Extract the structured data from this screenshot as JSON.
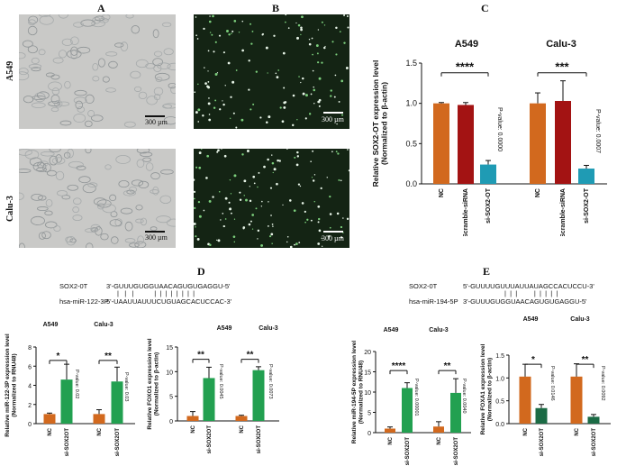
{
  "panels": {
    "A": "A",
    "B": "B",
    "C": "C",
    "D": "D",
    "E": "E"
  },
  "row_labels": {
    "top": "A549",
    "bottom": "Calu-3"
  },
  "scalebar_label": "300 µm",
  "colors": {
    "orange": "#d2691e",
    "dark_red": "#a31313",
    "teal": "#1f9bb4",
    "green": "#22a050",
    "dark_green": "#1b6b45"
  },
  "panel_C": {
    "titles": [
      "A549",
      "Calu-3"
    ],
    "ylabel_line1": "Relative SOX2-OT expression level",
    "ylabel_line2": "(Normalized to β-actin)",
    "yticks": [
      "0.0",
      "0.5",
      "1.0",
      "1.5"
    ],
    "pvalues": [
      "P-value: 0.0000",
      "P-value: 0.0007"
    ],
    "stars": [
      "****",
      "***"
    ]
  },
  "panel_D": {
    "seq_sox2_label": "SOX2-0T",
    "seq_sox2": "3'-GUUUGUGGUAACAGUGUGAGGU-5'",
    "seq_mir_label": "hsa-miR-122-3P",
    "seq_mir": "5'-UAAUUAUUUCUGUAGCACUCCAC-3'",
    "chart1": {
      "titles": [
        "A549",
        "Calu-3"
      ],
      "ylabel_line1": "Relative miR-122-3P expression level",
      "ylabel_line2": "(Normalized to RNU48)",
      "yticks": [
        "0",
        "2",
        "4",
        "6",
        "8"
      ],
      "pvalues": [
        "P-value: 0.02",
        "P-value: 0.03"
      ],
      "stars": [
        "*",
        "**"
      ]
    },
    "chart2": {
      "titles": [
        "A549",
        "Calu-3"
      ],
      "ylabel_line1": "Relative FOXO1 expression level",
      "ylabel_line2": "(Normalized to β-actin)",
      "yticks": [
        "0",
        "5",
        "10",
        "15"
      ],
      "pvalues": [
        "P-value: 0.0045",
        "P-value: 0.0073"
      ],
      "stars": [
        "**",
        "**"
      ]
    }
  },
  "panel_E": {
    "seq_sox2_label": "SOX2-0T",
    "seq_sox2": "5'-GUUUUGUUUAUUAUAGCCACUCCU-3'",
    "seq_mir_label": "hsa-miR-194-5P",
    "seq_mir": "3'-GUUUGUGGUAACAGUGUGAGGU-5'",
    "chart1": {
      "titles": [
        "A549",
        "Calu-3"
      ],
      "ylabel_line1": "Relative miR-194-5P expression level",
      "ylabel_line2": "(Normalized to RNU48)",
      "yticks": [
        "0",
        "5",
        "10",
        "15",
        "20"
      ],
      "pvalues": [
        "P-value: 0.00001",
        "P-value: 0.0040"
      ],
      "stars": [
        "****",
        "**"
      ]
    },
    "chart2": {
      "titles": [
        "A549",
        "Calu-3"
      ],
      "ylabel_line1": "Relative FOXA1 expression level",
      "ylabel_line2": "(Normalized to β-actin)",
      "yticks": [
        "0.0",
        "0.5",
        "1.0",
        "1.5"
      ],
      "pvalues": [
        "P-value: 0.0146",
        "P-value: 0.0092"
      ],
      "stars": [
        "*",
        "**"
      ]
    }
  },
  "chart_data": [
    {
      "type": "bar",
      "id": "C",
      "ylim": [
        0,
        1.5
      ],
      "categories": [
        "NC",
        "Scramble-siRNA",
        "si-SOX2-OT",
        "NC",
        "Scramble-siRNA",
        "si-SOX2-OT"
      ],
      "groups": [
        "A549",
        "A549",
        "A549",
        "Calu-3",
        "Calu-3",
        "Calu-3"
      ],
      "values": [
        1.0,
        0.98,
        0.24,
        1.0,
        1.03,
        0.19
      ],
      "errors": [
        0.01,
        0.03,
        0.05,
        0.13,
        0.25,
        0.04
      ],
      "bar_colors": [
        "orange",
        "dark_red",
        "teal",
        "orange",
        "dark_red",
        "teal"
      ]
    },
    {
      "type": "bar",
      "id": "D1",
      "ylim": [
        0,
        8
      ],
      "categories": [
        "NC",
        "si-SOX2OT",
        "NC",
        "si-SOX2OT"
      ],
      "groups": [
        "A549",
        "A549",
        "Calu-3",
        "Calu-3"
      ],
      "values": [
        1.0,
        4.6,
        1.0,
        4.4
      ],
      "errors": [
        0.1,
        1.6,
        0.45,
        1.5
      ],
      "bar_colors": [
        "orange",
        "green",
        "orange",
        "green"
      ]
    },
    {
      "type": "bar",
      "id": "D2",
      "ylim": [
        0,
        15
      ],
      "categories": [
        "NC",
        "si-SOX2OT",
        "NC",
        "si-SOX2OT"
      ],
      "groups": [
        "A549",
        "A549",
        "Calu-3",
        "Calu-3"
      ],
      "values": [
        1.0,
        8.7,
        1.0,
        10.3
      ],
      "errors": [
        0.9,
        2.2,
        0.15,
        0.7
      ],
      "bar_colors": [
        "orange",
        "green",
        "orange",
        "green"
      ]
    },
    {
      "type": "bar",
      "id": "E1",
      "ylim": [
        0,
        20
      ],
      "categories": [
        "NC",
        "si-SOX2OT",
        "NC",
        "si-SOX2OT"
      ],
      "groups": [
        "A549",
        "A549",
        "Calu-3",
        "Calu-3"
      ],
      "values": [
        1.0,
        11.0,
        1.5,
        9.8
      ],
      "errors": [
        0.4,
        1.3,
        1.2,
        3.5
      ],
      "bar_colors": [
        "orange",
        "green",
        "orange",
        "green"
      ]
    },
    {
      "type": "bar",
      "id": "E2",
      "ylim": [
        0,
        1.5
      ],
      "categories": [
        "NC",
        "si-SOX2OT",
        "NC",
        "si-SOX2OT"
      ],
      "groups": [
        "A549",
        "A549",
        "Calu-3",
        "Calu-3"
      ],
      "values": [
        1.03,
        0.34,
        1.03,
        0.15
      ],
      "errors": [
        0.27,
        0.08,
        0.28,
        0.05
      ],
      "bar_colors": [
        "orange",
        "dark_green",
        "orange",
        "dark_green"
      ]
    }
  ]
}
